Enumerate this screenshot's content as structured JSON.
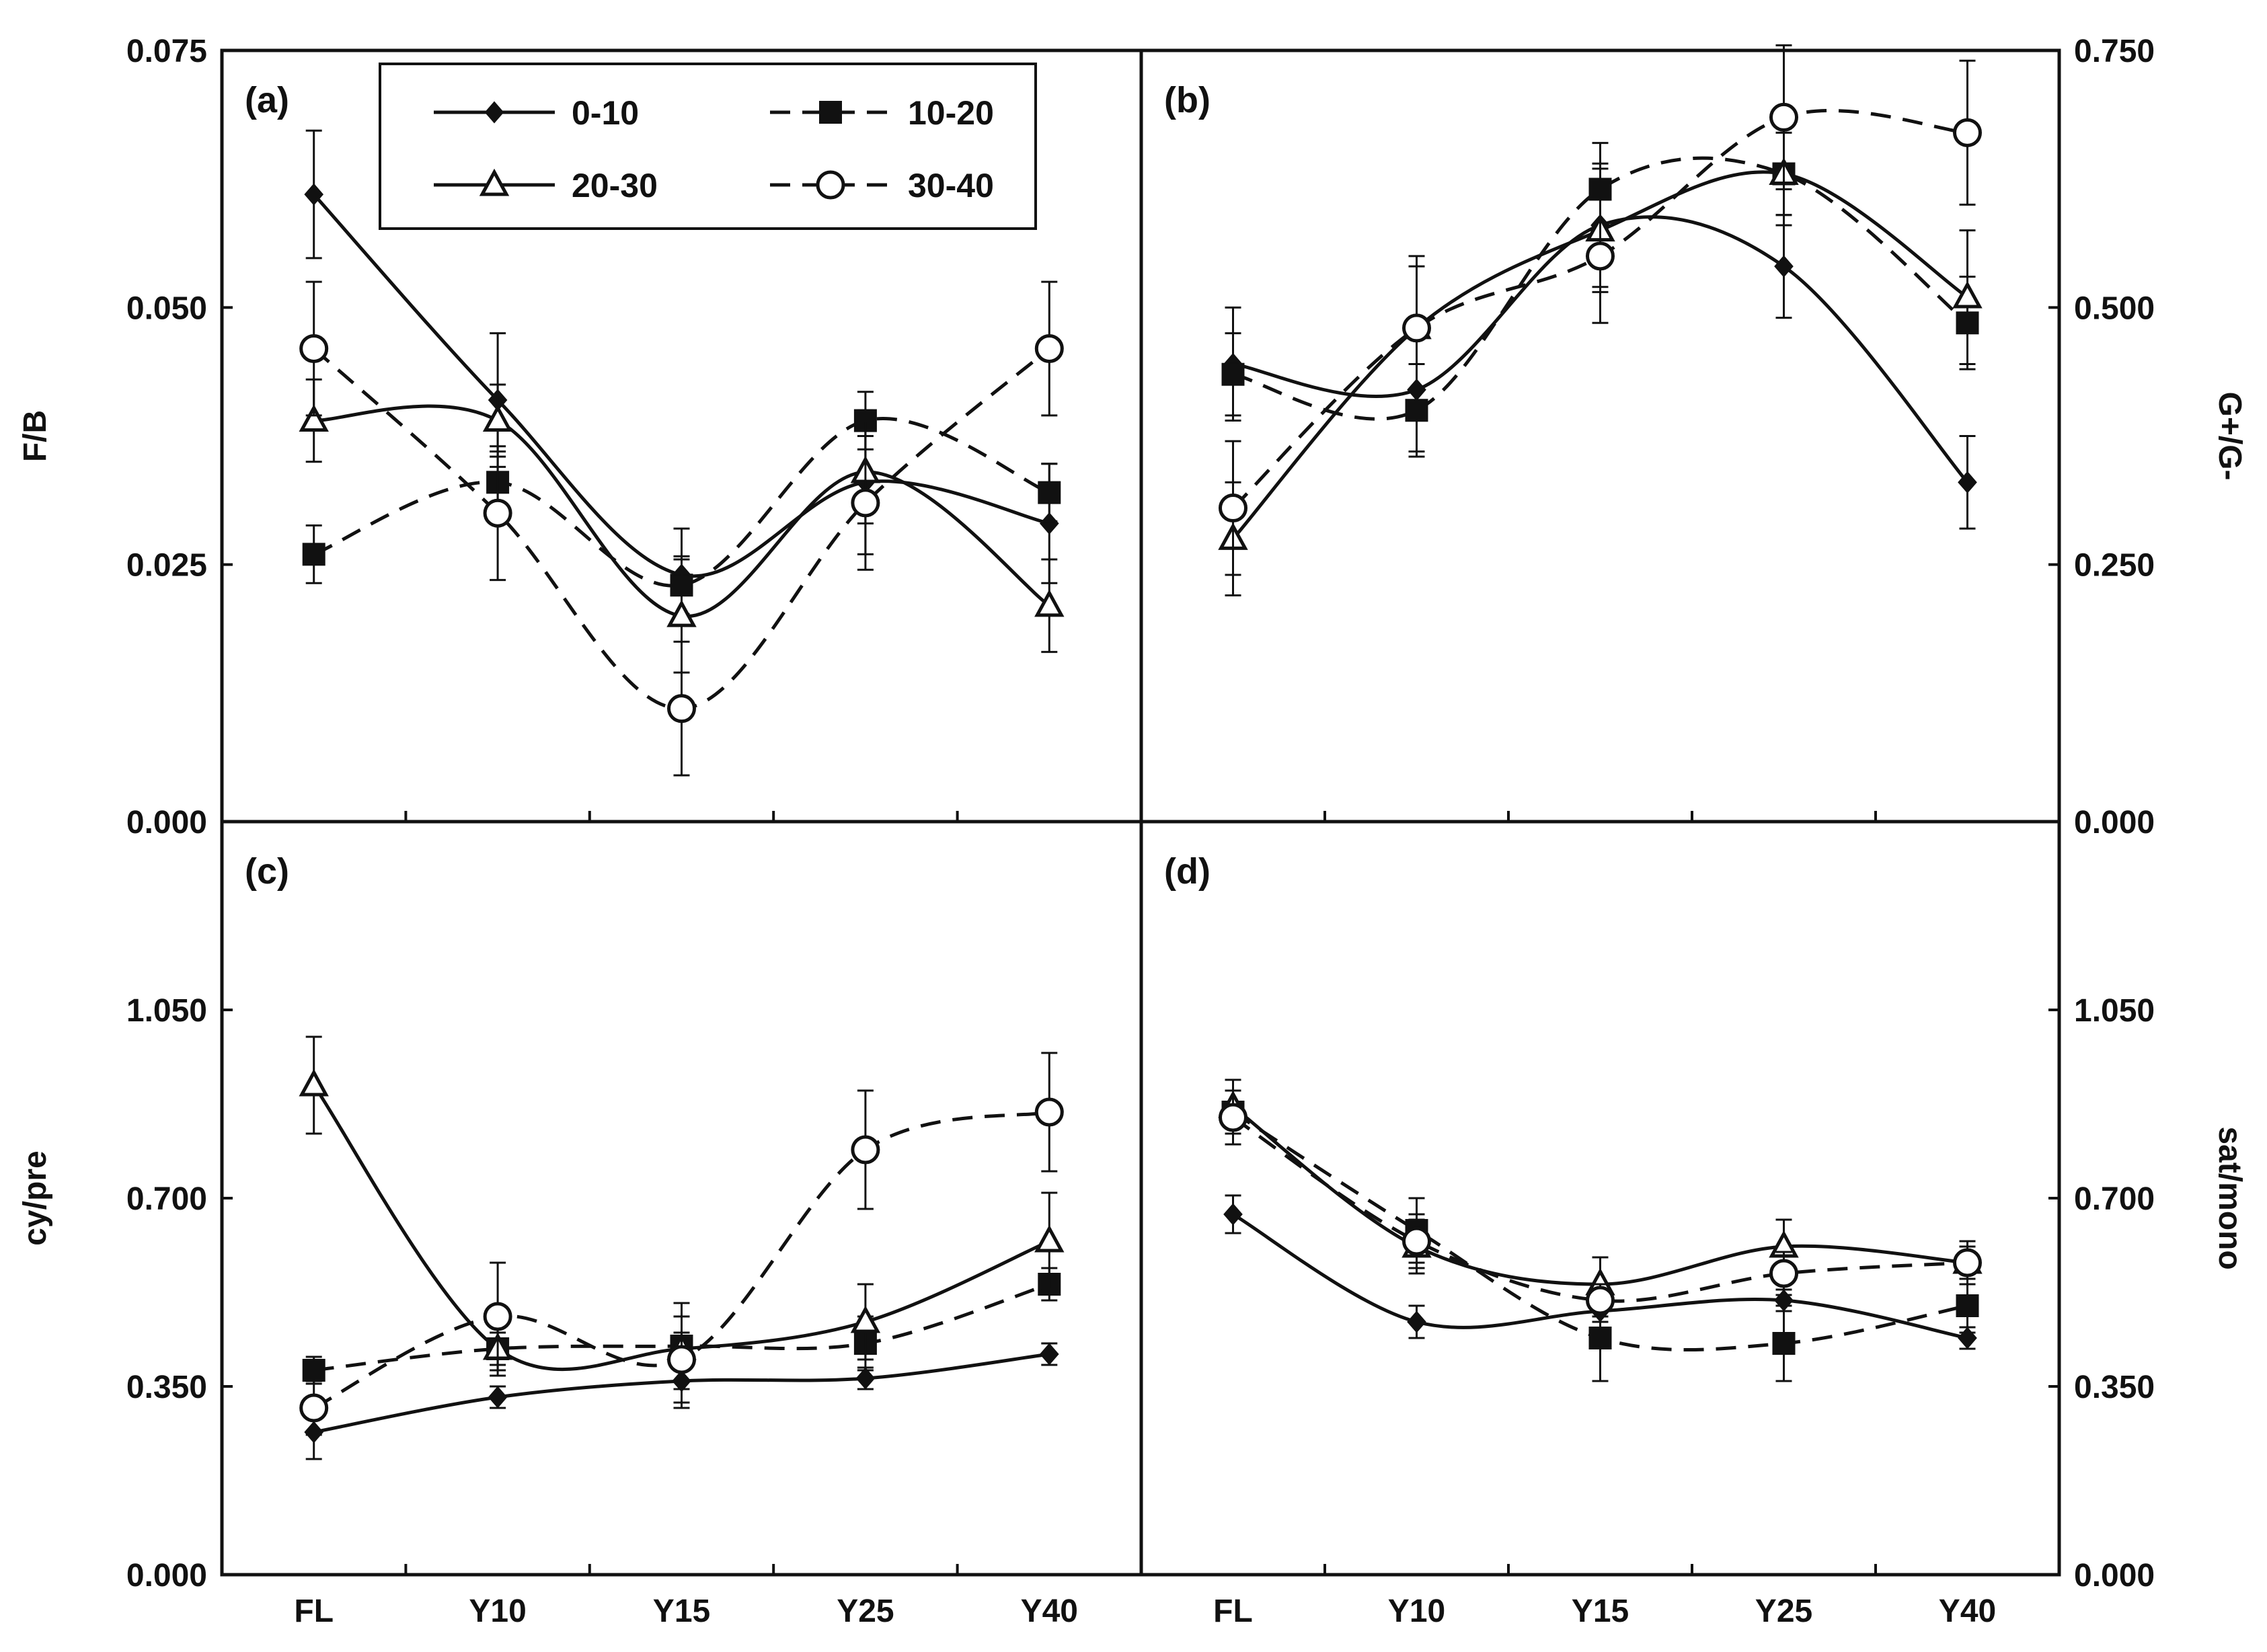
{
  "chart_data": [
    {
      "panel": "a",
      "type": "line",
      "panel_label": "(a)",
      "ylabel": "F/B",
      "y_axis_side": "left",
      "ylim": [
        0,
        0.075
      ],
      "yticks": [
        "0.000",
        "0.025",
        "0.050",
        "0.075"
      ],
      "categories": [
        "FL",
        "Y10",
        "Y15",
        "Y25",
        "Y40"
      ],
      "series": [
        {
          "name": "0-10",
          "values": [
            0.061,
            0.041,
            0.024,
            0.033,
            0.029
          ],
          "errors": [
            0.0062,
            0.0065,
            0.0045,
            0.007,
            0.0058
          ],
          "line": "solid",
          "marker": "diamond"
        },
        {
          "name": "10-20",
          "values": [
            0.026,
            0.033,
            0.023,
            0.039,
            0.032
          ],
          "errors": [
            0.0028,
            0.003,
            0.0028,
            0.0028,
            0.0028
          ],
          "line": "dashed",
          "marker": "square"
        },
        {
          "name": "20-30",
          "values": [
            0.039,
            0.039,
            0.02,
            0.034,
            0.021
          ],
          "errors": [
            0.004,
            0.0035,
            0.0055,
            0.005,
            0.0045
          ],
          "line": "solid",
          "marker": "triangle"
        },
        {
          "name": "30-40",
          "values": [
            0.046,
            0.03,
            0.011,
            0.031,
            0.046
          ],
          "errors": [
            0.0065,
            0.0065,
            0.0065,
            0.0065,
            0.0065
          ],
          "line": "dashed",
          "marker": "circle"
        }
      ]
    },
    {
      "panel": "b",
      "type": "line",
      "panel_label": "(b)",
      "ylabel": "G+/G-",
      "y_axis_side": "right",
      "ylim": [
        0,
        0.75
      ],
      "yticks": [
        "0.000",
        "0.250",
        "0.500",
        "0.750"
      ],
      "categories": [
        "FL",
        "Y10",
        "Y15",
        "Y25",
        "Y40"
      ],
      "series": [
        {
          "name": "0-10",
          "values": [
            0.445,
            0.42,
            0.58,
            0.54,
            0.33
          ],
          "errors": [
            0.055,
            0.06,
            0.06,
            0.05,
            0.045
          ],
          "line": "solid",
          "marker": "diamond"
        },
        {
          "name": "10-20",
          "values": [
            0.435,
            0.4,
            0.615,
            0.63,
            0.485
          ],
          "errors": [
            0.04,
            0.045,
            0.045,
            0.04,
            0.045
          ],
          "line": "dashed",
          "marker": "square"
        },
        {
          "name": "20-30",
          "values": [
            0.275,
            0.48,
            0.575,
            0.63,
            0.51
          ],
          "errors": [
            0.055,
            0.06,
            0.06,
            0.05,
            0.065
          ],
          "line": "solid",
          "marker": "triangle"
        },
        {
          "name": "30-40",
          "values": [
            0.305,
            0.48,
            0.55,
            0.685,
            0.67
          ],
          "errors": [
            0.065,
            0.07,
            0.065,
            0.07,
            0.07
          ],
          "line": "dashed",
          "marker": "circle"
        }
      ]
    },
    {
      "panel": "c",
      "type": "line",
      "panel_label": "(c)",
      "ylabel": "cy/pre",
      "y_axis_side": "left",
      "ylim": [
        0,
        1.4
      ],
      "yticks": [
        "0.000",
        "0.350",
        "0.700",
        "1.050"
      ],
      "categories": [
        "FL",
        "Y10",
        "Y15",
        "Y25",
        "Y40"
      ],
      "series": [
        {
          "name": "0-10",
          "values": [
            0.265,
            0.33,
            0.36,
            0.365,
            0.41
          ],
          "errors": [
            0.05,
            0.02,
            0.05,
            0.02,
            0.02
          ],
          "line": "solid",
          "marker": "diamond"
        },
        {
          "name": "10-20",
          "values": [
            0.38,
            0.42,
            0.425,
            0.43,
            0.54
          ],
          "errors": [
            0.025,
            0.03,
            0.08,
            0.05,
            0.03
          ],
          "line": "dashed",
          "marker": "square"
        },
        {
          "name": "20-30",
          "values": [
            0.91,
            0.42,
            0.42,
            0.47,
            0.62
          ],
          "errors": [
            0.09,
            0.05,
            0.03,
            0.07,
            0.09
          ],
          "line": "solid",
          "marker": "triangle"
        },
        {
          "name": "30-40",
          "values": [
            0.31,
            0.48,
            0.4,
            0.79,
            0.86
          ],
          "errors": [
            0.05,
            0.1,
            0.08,
            0.11,
            0.11
          ],
          "line": "dashed",
          "marker": "circle"
        }
      ]
    },
    {
      "panel": "d",
      "type": "line",
      "panel_label": "(d)",
      "ylabel": "sat/mono",
      "y_axis_side": "right",
      "ylim": [
        0,
        1.4
      ],
      "yticks": [
        "0.000",
        "0.350",
        "0.700",
        "1.050"
      ],
      "categories": [
        "FL",
        "Y10",
        "Y15",
        "Y25",
        "Y40"
      ],
      "series": [
        {
          "name": "0-10",
          "values": [
            0.67,
            0.47,
            0.49,
            0.51,
            0.44
          ],
          "errors": [
            0.035,
            0.03,
            0.02,
            0.02,
            0.02
          ],
          "line": "solid",
          "marker": "diamond"
        },
        {
          "name": "10-20",
          "values": [
            0.86,
            0.64,
            0.44,
            0.43,
            0.5
          ],
          "errors": [
            0.06,
            0.06,
            0.08,
            0.07,
            0.05
          ],
          "line": "dashed",
          "marker": "square"
        },
        {
          "name": "20-30",
          "values": [
            0.87,
            0.61,
            0.54,
            0.61,
            0.58
          ],
          "errors": [
            0.05,
            0.05,
            0.05,
            0.05,
            0.04
          ],
          "line": "solid",
          "marker": "triangle"
        },
        {
          "name": "30-40",
          "values": [
            0.85,
            0.62,
            0.51,
            0.56,
            0.58
          ],
          "errors": [
            0.05,
            0.05,
            0.03,
            0.04,
            0.03
          ],
          "line": "dashed",
          "marker": "circle"
        }
      ]
    }
  ],
  "legend": [
    {
      "name": "0-10",
      "line": "solid",
      "marker": "diamond"
    },
    {
      "name": "10-20",
      "line": "dashed",
      "marker": "square"
    },
    {
      "name": "20-30",
      "line": "solid",
      "marker": "triangle"
    },
    {
      "name": "30-40",
      "line": "dashed",
      "marker": "circle"
    }
  ],
  "colors": {
    "ink": "#111111",
    "background": "#ffffff"
  }
}
